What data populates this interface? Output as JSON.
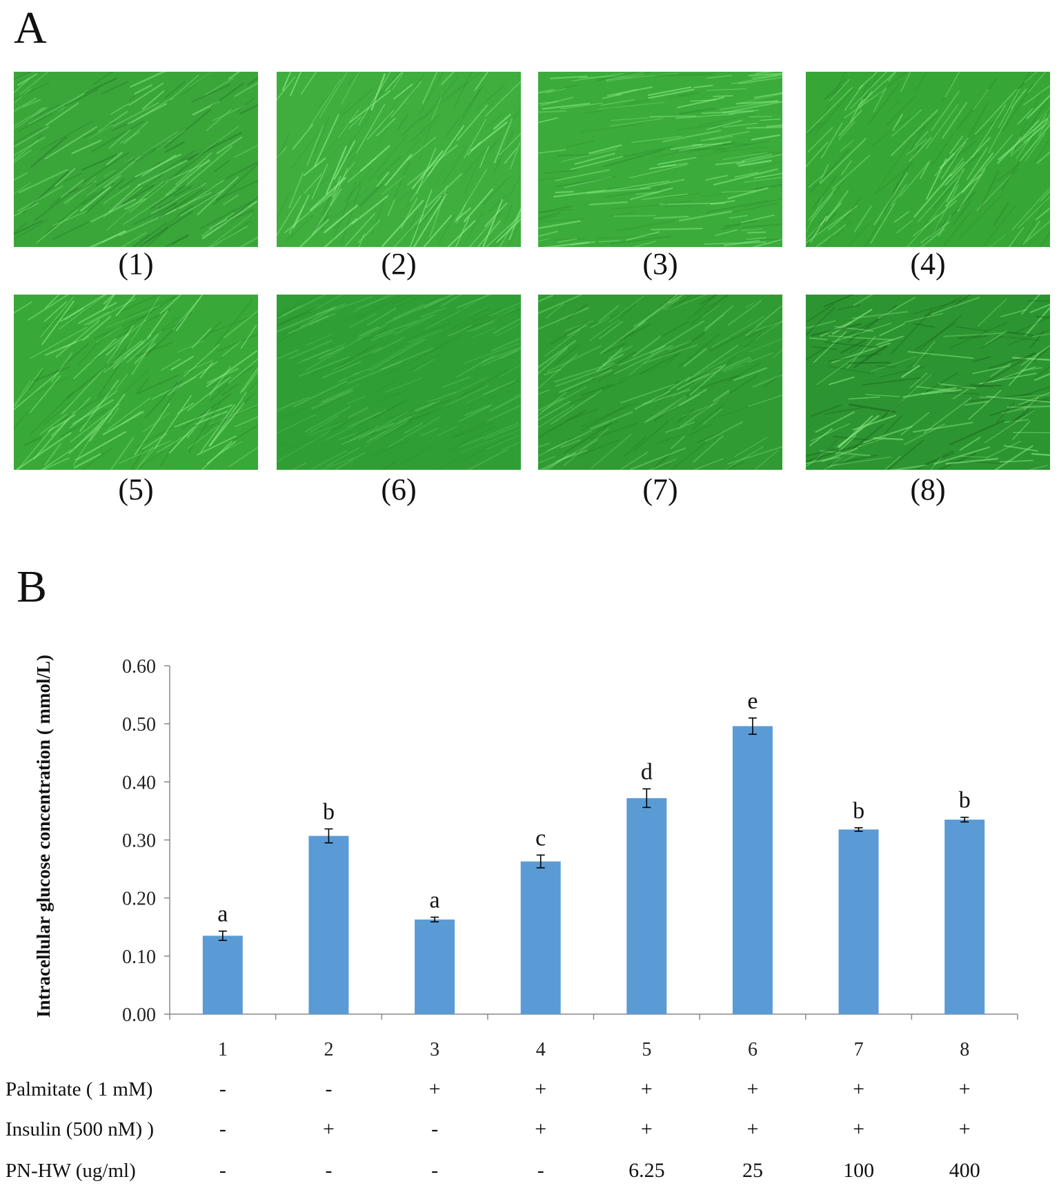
{
  "panel_a": {
    "letter": "A",
    "images": [
      {
        "label": "(1)",
        "texture": "dense-diagonal-streaks"
      },
      {
        "label": "(2)",
        "texture": "curved-bright-streaks"
      },
      {
        "label": "(3)",
        "texture": "horizontal-streaks"
      },
      {
        "label": "(4)",
        "texture": "diagonal-streaks"
      },
      {
        "label": "(5)",
        "texture": "mixed-streaks"
      },
      {
        "label": "(6)",
        "texture": "smooth-fine-streaks"
      },
      {
        "label": "(7)",
        "texture": "dark-fine-streaks"
      },
      {
        "label": "(8)",
        "texture": "dark-dense-network"
      }
    ]
  },
  "panel_b": {
    "letter": "B",
    "row_labels": [
      "Palmitate ( 1 mM)",
      "Insulin (500 nM) )",
      "PN-HW (ug/ml)"
    ],
    "conditions": {
      "palmitate": [
        "-",
        "-",
        "+",
        "+",
        "+",
        "+",
        "+",
        "+"
      ],
      "insulin": [
        "-",
        "+",
        "-",
        "+",
        "+",
        "+",
        "+",
        "+"
      ],
      "pnhw": [
        "-",
        "-",
        "-",
        "-",
        "6.25",
        "25",
        "100",
        "400"
      ]
    }
  },
  "colors": {
    "bar": "#5b9bd5",
    "tile_green": "#3aa63a"
  },
  "chart_data": {
    "type": "bar",
    "categories": [
      "1",
      "2",
      "3",
      "4",
      "5",
      "6",
      "7",
      "8"
    ],
    "values": [
      0.135,
      0.307,
      0.163,
      0.263,
      0.372,
      0.496,
      0.318,
      0.335
    ],
    "errors": [
      0.008,
      0.012,
      0.004,
      0.011,
      0.016,
      0.014,
      0.003,
      0.004
    ],
    "significance": [
      "a",
      "b",
      "a",
      "c",
      "d",
      "e",
      "b",
      "b"
    ],
    "ylabel": "Intracellular glucose concentration ( mmol/L)",
    "xlabel": "",
    "ylim": [
      0,
      0.6
    ],
    "yticks": [
      "0.00",
      "0.10",
      "0.20",
      "0.30",
      "0.40",
      "0.50",
      "0.60"
    ],
    "grid": false,
    "legend": "none"
  }
}
